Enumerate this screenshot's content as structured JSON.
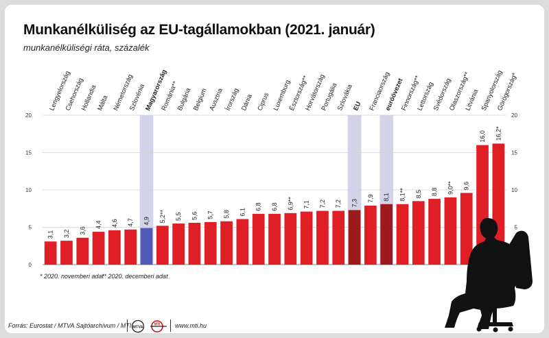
{
  "title": "Munkanélküliség az EU-tagállamokban (2021. január)",
  "subtitle": "munkanélküliségi ráta, százalék",
  "notes": {
    "note1": "* 2020. novemberi adat",
    "note2": "** 2020. decemberi adat"
  },
  "footer": {
    "source": "Forrás: Eurostat / MTVA Sajtóarchívum / MTI",
    "url": "www.mti.hu",
    "logo_mtva": "MTVA",
    "logo_mti": "MTI"
  },
  "colors": {
    "bar": "#e01e26",
    "bar_highlight_hu": "#4f5bb8",
    "bar_highlight_agg": "#9a1a1e",
    "band": "#d3d3ea",
    "grid": "#d0d0d0"
  },
  "chart_data": {
    "type": "bar",
    "title": "Munkanélküliség az EU-tagállamokban (2021. január)",
    "subtitle": "munkanélküliségi ráta, százalék",
    "ylim": [
      0,
      20
    ],
    "yticks": [
      0,
      5,
      10,
      15,
      20
    ],
    "grid": true,
    "categories": [
      "Lengyelország",
      "Csehország",
      "Hollandia",
      "Málta",
      "Németország",
      "Szlovénia",
      "Magyarország",
      "Románia**",
      "Bulgária",
      "Belgium",
      "Ausztria",
      "Írország",
      "Dánia",
      "Ciprus",
      "Luxemburg",
      "Észtország**",
      "Horvátország",
      "Portugália",
      "Szlovákia",
      "EU",
      "Franciaország",
      "euróövezet",
      "Finnország**",
      "Lettország",
      "Svédország",
      "Olaszország**",
      "Litvánia",
      "Spanyolország",
      "Görögország*"
    ],
    "values": [
      3.1,
      3.2,
      3.6,
      4.4,
      4.6,
      4.7,
      4.9,
      5.2,
      5.5,
      5.6,
      5.7,
      5.8,
      6.1,
      6.8,
      6.8,
      6.9,
      7.1,
      7.2,
      7.2,
      7.3,
      7.9,
      8.1,
      8.1,
      8.5,
      8.8,
      9.0,
      9.6,
      16.0,
      16.2
    ],
    "value_labels": [
      "3,1",
      "3,2",
      "3,6",
      "4,4",
      "4,6",
      "4,7",
      "4,9",
      "5,2**",
      "5,5",
      "5,6",
      "5,7",
      "5,8",
      "6,1",
      "6,8",
      "6,8",
      "6,9**",
      "7,1",
      "7,2",
      "7,2",
      "7,3",
      "7,9",
      "8,1",
      "8,1**",
      "8,5",
      "8,8",
      "9,0**",
      "9,6",
      "16,0",
      "16,2*"
    ],
    "highlight": {
      "Magyarország": "hu",
      "EU": "agg",
      "euróövezet": "agg"
    },
    "bold_labels": [
      "Magyarország",
      "EU",
      "euróövezet"
    ]
  }
}
